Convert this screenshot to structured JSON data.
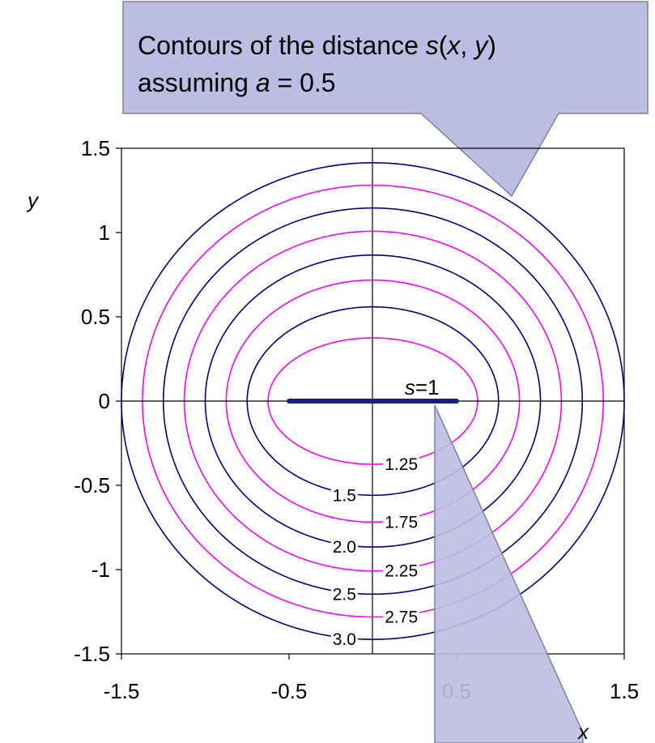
{
  "colors": {
    "navy": "#000080",
    "magenta": "#ff00ff",
    "callout_fill": "#bcbde2",
    "callout_stroke": "#7f7f9f",
    "axis": "#000000",
    "segment": "#1f1f7a"
  },
  "callout": {
    "line1_prefix": "Contours of the distance ",
    "line1_var": "s",
    "line1_open": "(",
    "line1_x": "x",
    "line1_comma": ", ",
    "line1_y": "y",
    "line1_close": ")",
    "line2_prefix": "assuming ",
    "line2_var": "a",
    "line2_rest": " = 0.5"
  },
  "chart_data": {
    "type": "line",
    "subtype": "contour",
    "description_function": "s(x, y)",
    "parameter_a": 0.5,
    "xlabel": "x",
    "ylabel": "y",
    "xlim": [
      -1.5,
      1.5
    ],
    "ylim": [
      -1.5,
      1.5
    ],
    "x_ticks": [
      "-1.5",
      "-0.5",
      "0.5",
      "1.5"
    ],
    "x_tick_values": [
      -1.5,
      -0.5,
      0.5,
      1.5
    ],
    "y_ticks": [
      "1.5",
      "1",
      "0.5",
      "0",
      "-0.5",
      "-1",
      "-1.5"
    ],
    "y_tick_values": [
      1.5,
      1,
      0.5,
      0,
      -0.5,
      -1,
      -1.5
    ],
    "segment": {
      "x": [
        -0.5,
        0.5
      ],
      "y": [
        0,
        0
      ],
      "label_var": "s",
      "label_rest": "=1"
    },
    "series": [
      {
        "level": 1.25,
        "label": "1.25",
        "color": "magenta"
      },
      {
        "level": 1.5,
        "label": "1.5",
        "color": "navy"
      },
      {
        "level": 1.75,
        "label": "1.75",
        "color": "magenta"
      },
      {
        "level": 2.0,
        "label": "2.0",
        "color": "navy"
      },
      {
        "level": 2.25,
        "label": "2.25",
        "color": "magenta"
      },
      {
        "level": 2.5,
        "label": "2.5",
        "color": "navy"
      },
      {
        "level": 2.75,
        "label": "2.75",
        "color": "magenta"
      },
      {
        "level": 3.0,
        "label": "3.0",
        "color": "navy"
      }
    ],
    "grid": false,
    "legend": "none"
  }
}
